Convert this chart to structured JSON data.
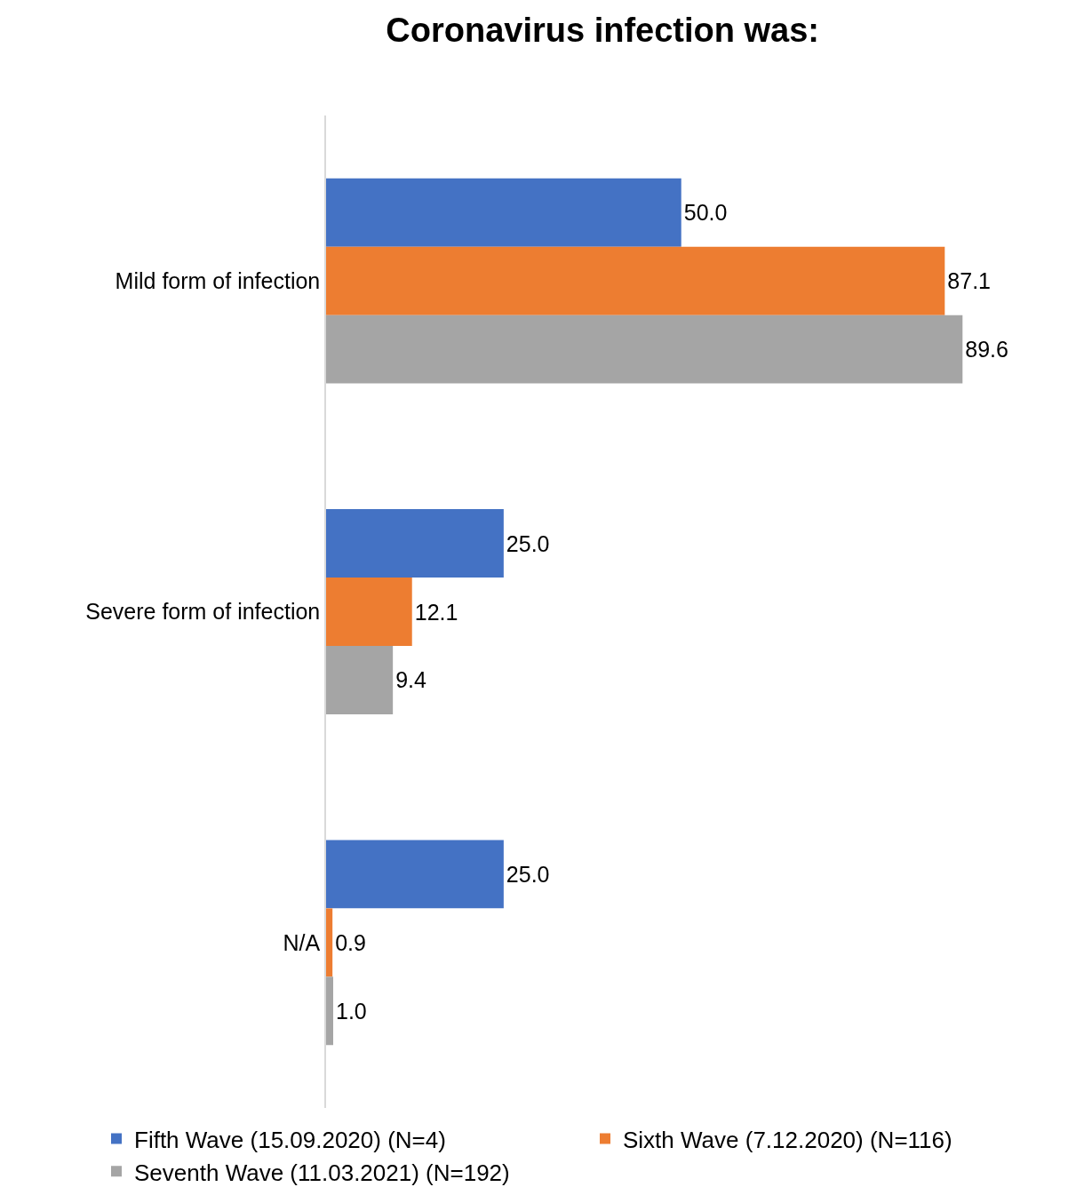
{
  "chart_data": {
    "type": "bar",
    "orientation": "horizontal",
    "title": "Coronavirus infection was:",
    "categories": [
      "Mild form of infection",
      "Severe form of infection",
      "N/A"
    ],
    "series": [
      {
        "name": "Fifth Wave (15.09.2020) (N=4)",
        "color": "#4472c4",
        "values": [
          50.0,
          25.0,
          25.0
        ],
        "value_labels": [
          "50.0",
          "25.0",
          "25.0"
        ]
      },
      {
        "name": "Sixth Wave (7.12.2020) (N=116)",
        "color": "#ed7d31",
        "values": [
          87.1,
          12.1,
          0.9
        ],
        "value_labels": [
          "87.1",
          "12.1",
          "0.9"
        ]
      },
      {
        "name": "Seventh Wave (11.03.2021) (N=192)",
        "color": "#a5a5a5",
        "values": [
          89.6,
          9.4,
          1.0
        ],
        "value_labels": [
          "89.6",
          "9.4",
          "1.0"
        ]
      }
    ],
    "tick_labels": "y",
    "grid": false,
    "legend": "bottom"
  }
}
